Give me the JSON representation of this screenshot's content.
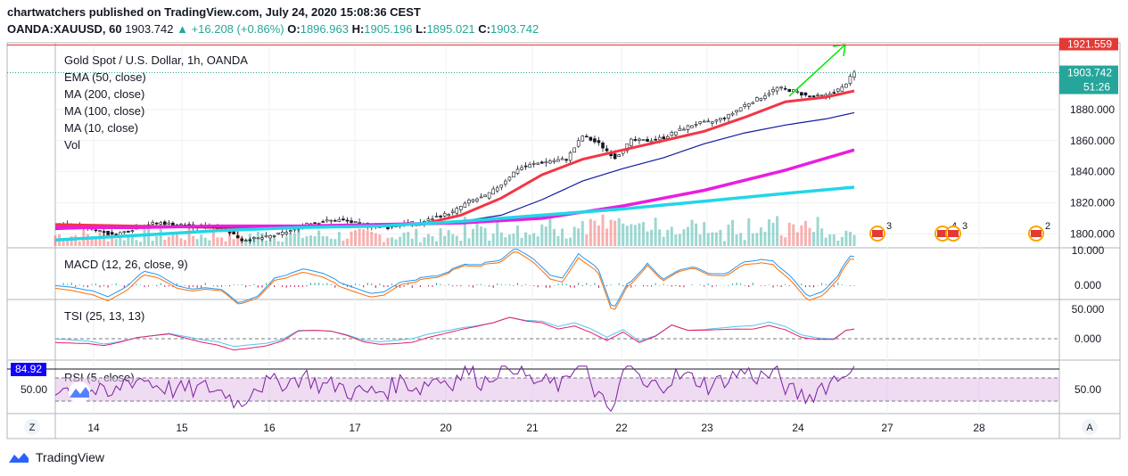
{
  "header": {
    "publisher_line": "chartwatchers published on TradingView.com, July 24, 2020 15:08:36 CEST",
    "symbol": "OANDA:XAUUSD, 60",
    "last": "1903.742",
    "arrow": "▲",
    "change": "+16.208 (+0.86%)",
    "o_label": "O:",
    "o": "1896.963",
    "h_label": "H:",
    "h": "1905.196",
    "l_label": "L:",
    "l": "1895.021",
    "c_label": "C:",
    "c": "1903.742"
  },
  "brand": {
    "name": "TradingView"
  },
  "panel_legends": {
    "main": [
      "Gold Spot / U.S. Dollar, 1h, OANDA",
      "EMA (50, close)",
      "MA (200, close)",
      "MA (100, close)",
      "MA (10, close)",
      "Vol"
    ],
    "macd": "MACD (12, 26, close, 9)",
    "tsi": "TSI (25, 13, 13)",
    "rsi": "RSI (5, close)"
  },
  "price_tags": {
    "top": "1921.559",
    "last": "1903.742",
    "countdown": "51:26"
  },
  "rsi_tag": "84.92",
  "event_badges": [
    "3",
    "4",
    "3",
    "2"
  ],
  "corner_buttons": {
    "left": "Z",
    "right": "A"
  },
  "chart_data": {
    "type": "candlestick",
    "title": "Gold Spot / U.S. Dollar, 1h, OANDA",
    "x_tick_labels": [
      "14",
      "15",
      "16",
      "17",
      "20",
      "21",
      "22",
      "23",
      "24",
      "27",
      "28"
    ],
    "price_axis": {
      "ticks": [
        "1800.000",
        "1820.000",
        "1840.000",
        "1860.000",
        "1880.000"
      ],
      "range": [
        1791,
        1923
      ]
    },
    "macd_axis": {
      "ticks": [
        "10.000",
        "0.000"
      ]
    },
    "tsi_axis": {
      "ticks": [
        "50.000",
        "0.000"
      ]
    },
    "rsi_axis": {
      "ticks": [
        "50.00"
      ]
    },
    "price_path": [
      [
        0,
        1806
      ],
      [
        5,
        1805
      ],
      [
        10,
        1803
      ],
      [
        14,
        1799
      ],
      [
        18,
        1802
      ],
      [
        22,
        1806
      ],
      [
        26,
        1807
      ],
      [
        30,
        1806
      ],
      [
        34,
        1805
      ],
      [
        38,
        1805
      ],
      [
        42,
        1803
      ],
      [
        46,
        1796
      ],
      [
        50,
        1797
      ],
      [
        54,
        1799
      ],
      [
        58,
        1802
      ],
      [
        62,
        1807
      ],
      [
        66,
        1808
      ],
      [
        70,
        1809
      ],
      [
        74,
        1807
      ],
      [
        78,
        1805
      ],
      [
        82,
        1804
      ],
      [
        86,
        1807
      ],
      [
        90,
        1807
      ],
      [
        94,
        1811
      ],
      [
        98,
        1814
      ],
      [
        102,
        1821
      ],
      [
        106,
        1824
      ],
      [
        110,
        1832
      ],
      [
        114,
        1842
      ],
      [
        118,
        1845
      ],
      [
        122,
        1847
      ],
      [
        126,
        1848
      ],
      [
        130,
        1863
      ],
      [
        134,
        1858
      ],
      [
        138,
        1849
      ],
      [
        142,
        1860
      ],
      [
        146,
        1860
      ],
      [
        150,
        1862
      ],
      [
        154,
        1867
      ],
      [
        158,
        1871
      ],
      [
        162,
        1872
      ],
      [
        166,
        1876
      ],
      [
        170,
        1883
      ],
      [
        174,
        1888
      ],
      [
        178,
        1894
      ],
      [
        182,
        1892
      ],
      [
        186,
        1888
      ],
      [
        190,
        1889
      ],
      [
        194,
        1894
      ],
      [
        197,
        1903.742
      ]
    ],
    "series": [
      {
        "name": "EMA (50, close)",
        "color": "#f23645",
        "values": [
          [
            0,
            1806
          ],
          [
            20,
            1805
          ],
          [
            40,
            1804
          ],
          [
            60,
            1805
          ],
          [
            80,
            1806
          ],
          [
            90,
            1806
          ],
          [
            100,
            1812
          ],
          [
            110,
            1823
          ],
          [
            120,
            1838
          ],
          [
            130,
            1848
          ],
          [
            140,
            1854
          ],
          [
            150,
            1860
          ],
          [
            160,
            1866
          ],
          [
            170,
            1875
          ],
          [
            180,
            1885
          ],
          [
            190,
            1888
          ],
          [
            197,
            1892
          ]
        ]
      },
      {
        "name": "MA (200, close)",
        "color": "#0d1b9e",
        "values": [
          [
            0,
            1803
          ],
          [
            20,
            1804
          ],
          [
            40,
            1804
          ],
          [
            60,
            1805
          ],
          [
            80,
            1806
          ],
          [
            100,
            1808
          ],
          [
            110,
            1812
          ],
          [
            120,
            1822
          ],
          [
            130,
            1834
          ],
          [
            140,
            1842
          ],
          [
            150,
            1849
          ],
          [
            160,
            1858
          ],
          [
            170,
            1865
          ],
          [
            180,
            1870
          ],
          [
            190,
            1874
          ],
          [
            197,
            1878
          ]
        ]
      },
      {
        "name": "MA (100, close)",
        "color": "#e91ee0",
        "values": [
          [
            0,
            1804
          ],
          [
            20,
            1804
          ],
          [
            40,
            1805
          ],
          [
            60,
            1805
          ],
          [
            80,
            1806
          ],
          [
            100,
            1807
          ],
          [
            120,
            1810
          ],
          [
            140,
            1818
          ],
          [
            160,
            1828
          ],
          [
            180,
            1841
          ],
          [
            197,
            1854
          ]
        ]
      },
      {
        "name": "MA (10, close)",
        "color": "#21d6e8",
        "values": [
          [
            0,
            1796
          ],
          [
            20,
            1799
          ],
          [
            40,
            1802
          ],
          [
            60,
            1804
          ],
          [
            80,
            1805
          ],
          [
            100,
            1808
          ],
          [
            120,
            1812
          ],
          [
            140,
            1816
          ],
          [
            160,
            1821
          ],
          [
            180,
            1826
          ],
          [
            197,
            1830
          ]
        ]
      }
    ],
    "colors": {
      "up": "#26a69a",
      "down": "#ef5350",
      "rsi": "#7b1fa2",
      "macd": "#2196f3",
      "signal": "#ff6d00",
      "tsi": "#4fc3f7",
      "tsi_signal": "#e91e63"
    }
  }
}
